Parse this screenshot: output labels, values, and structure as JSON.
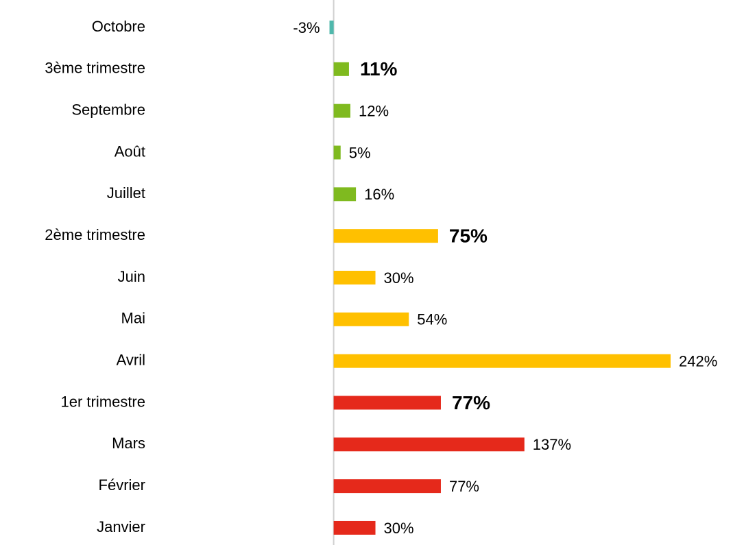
{
  "chart_data": {
    "type": "barh",
    "categories": [
      "Octobre",
      "3ème trimestre",
      "Septembre",
      "Août",
      "Juillet",
      "2ème trimestre",
      "Juin",
      "Mai",
      "Avril",
      "1er trimestre",
      "Mars",
      "Février",
      "Janvier"
    ],
    "values": [
      -3,
      11,
      12,
      5,
      16,
      75,
      30,
      54,
      242,
      77,
      137,
      77,
      30
    ],
    "value_labels": [
      "-3%",
      "11%",
      "12%",
      "5%",
      "16%",
      "75%",
      "30%",
      "54%",
      "242%",
      "77%",
      "137%",
      "77%",
      "30%"
    ],
    "colors": [
      "#4fb8ac",
      "#7fba1f",
      "#7fba1f",
      "#7fba1f",
      "#7fba1f",
      "#ffc000",
      "#ffc000",
      "#ffc000",
      "#ffc000",
      "#e5291b",
      "#e5291b",
      "#e5291b",
      "#e5291b"
    ],
    "bold": [
      false,
      true,
      false,
      false,
      false,
      true,
      false,
      false,
      false,
      true,
      false,
      false,
      false
    ],
    "xlim": [
      -20,
      242
    ]
  }
}
